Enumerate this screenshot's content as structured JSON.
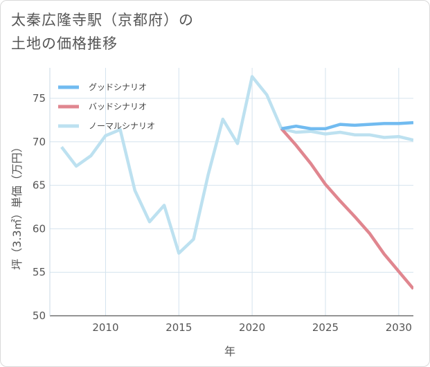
{
  "title_line1": "太秦広隆寺駅（京都府）の",
  "title_line2": "土地の価格推移",
  "chart_data": {
    "type": "line",
    "xlabel": "年",
    "ylabel": "坪（3.3㎡）単価（万円）",
    "xlim": [
      2006.2,
      2031
    ],
    "ylim": [
      50,
      78.5
    ],
    "xticks": [
      2010,
      2015,
      2020,
      2025,
      2030
    ],
    "yticks": [
      50,
      55,
      60,
      65,
      70,
      75
    ],
    "grid": true,
    "legend_position": "top-left",
    "series": [
      {
        "name": "グッドシナリオ",
        "color": "#71bbf0",
        "x": [
          2022,
          2023,
          2024,
          2025,
          2026,
          2027,
          2028,
          2029,
          2030,
          2031
        ],
        "values": [
          71.5,
          71.8,
          71.5,
          71.5,
          72.0,
          71.9,
          72.0,
          72.1,
          72.1,
          72.2
        ]
      },
      {
        "name": "バッドシナリオ",
        "color": "#e0868f",
        "x": [
          2022,
          2023,
          2024,
          2025,
          2026,
          2027,
          2028,
          2029,
          2030,
          2031
        ],
        "values": [
          71.5,
          69.6,
          67.5,
          65.1,
          63.2,
          61.4,
          59.5,
          57.1,
          55.1,
          53.1
        ]
      },
      {
        "name": "ノーマルシナリオ",
        "color": "#bde1f0",
        "x": [
          2007,
          2008,
          2009,
          2010,
          2011,
          2012,
          2013,
          2014,
          2015,
          2016,
          2017,
          2018,
          2019,
          2020,
          2021,
          2022,
          2023,
          2024,
          2025,
          2026,
          2027,
          2028,
          2029,
          2030,
          2031
        ],
        "values": [
          69.4,
          67.2,
          68.4,
          70.7,
          71.4,
          64.4,
          60.8,
          62.7,
          57.2,
          58.8,
          66.2,
          72.6,
          69.8,
          77.5,
          75.4,
          71.5,
          71.1,
          71.2,
          70.9,
          71.1,
          70.8,
          70.8,
          70.5,
          70.6,
          70.2
        ]
      }
    ]
  }
}
